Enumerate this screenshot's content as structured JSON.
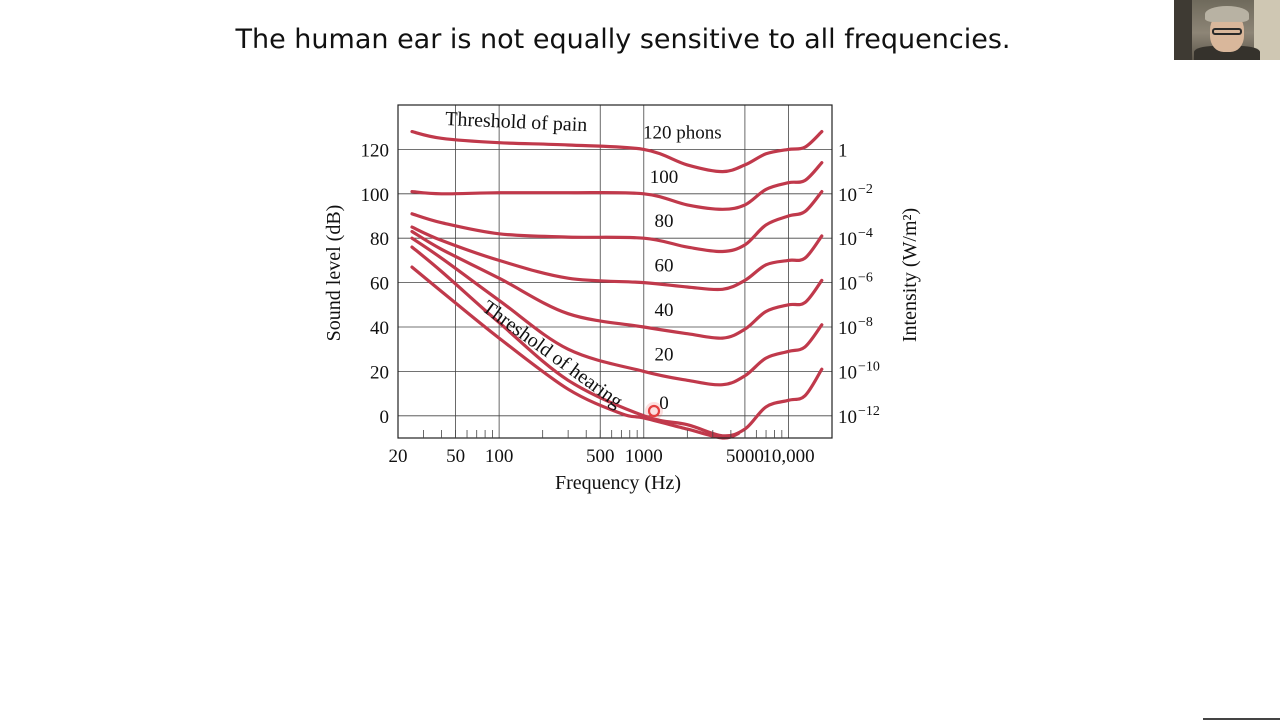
{
  "slide": {
    "title": "The human ear is not equally sensitive to all frequencies."
  },
  "chart_data": {
    "type": "line",
    "xlabel": "Frequency (Hz)",
    "ylabel": "Sound level (dB)",
    "y2label": "Intensity (W/m²)",
    "xscale": "log",
    "xlim": [
      20,
      20000
    ],
    "ylim": [
      -10,
      140
    ],
    "xticks": [
      {
        "value": 20,
        "label": "20"
      },
      {
        "value": 50,
        "label": "50"
      },
      {
        "value": 100,
        "label": "100"
      },
      {
        "value": 500,
        "label": "500"
      },
      {
        "value": 1000,
        "label": "1000"
      },
      {
        "value": 5000,
        "label": "5000"
      },
      {
        "value": 10000,
        "label": "10,000"
      }
    ],
    "yticks": [
      {
        "value": 0,
        "label": "0"
      },
      {
        "value": 20,
        "label": "20"
      },
      {
        "value": 40,
        "label": "40"
      },
      {
        "value": 60,
        "label": "60"
      },
      {
        "value": 80,
        "label": "80"
      },
      {
        "value": 100,
        "label": "100"
      },
      {
        "value": 120,
        "label": "120"
      }
    ],
    "y2ticks": [
      {
        "value": 120,
        "base": "1",
        "exp": ""
      },
      {
        "value": 100,
        "base": "10",
        "exp": "−2"
      },
      {
        "value": 80,
        "base": "10",
        "exp": "−4"
      },
      {
        "value": 60,
        "base": "10",
        "exp": "−6"
      },
      {
        "value": 40,
        "base": "10",
        "exp": "−8"
      },
      {
        "value": 20,
        "base": "10",
        "exp": "−10"
      },
      {
        "value": 0,
        "base": "10",
        "exp": "−12"
      }
    ],
    "grid": true,
    "line_color": "#c0394b",
    "series": [
      {
        "label": "120 phons",
        "points": [
          [
            25,
            128
          ],
          [
            40,
            125
          ],
          [
            100,
            123
          ],
          [
            300,
            122
          ],
          [
            1000,
            120
          ],
          [
            2000,
            113
          ],
          [
            3500,
            110
          ],
          [
            5000,
            113
          ],
          [
            7000,
            118
          ],
          [
            10000,
            120
          ],
          [
            13000,
            121
          ],
          [
            17000,
            128
          ]
        ]
      },
      {
        "label": "100",
        "points": [
          [
            25,
            101
          ],
          [
            40,
            100
          ],
          [
            100,
            100.5
          ],
          [
            300,
            100.5
          ],
          [
            1000,
            100
          ],
          [
            2000,
            95
          ],
          [
            3500,
            93
          ],
          [
            5000,
            95
          ],
          [
            7000,
            102
          ],
          [
            10000,
            105
          ],
          [
            13000,
            106
          ],
          [
            17000,
            114
          ]
        ]
      },
      {
        "label": "80",
        "points": [
          [
            25,
            91
          ],
          [
            40,
            87
          ],
          [
            100,
            82
          ],
          [
            300,
            80.5
          ],
          [
            1000,
            80
          ],
          [
            2000,
            76
          ],
          [
            3500,
            74
          ],
          [
            5000,
            77
          ],
          [
            7000,
            86
          ],
          [
            10000,
            90
          ],
          [
            13000,
            92
          ],
          [
            17000,
            101
          ]
        ]
      },
      {
        "label": "60",
        "points": [
          [
            25,
            85
          ],
          [
            40,
            79
          ],
          [
            100,
            70
          ],
          [
            300,
            62
          ],
          [
            1000,
            60
          ],
          [
            2000,
            58
          ],
          [
            3500,
            57
          ],
          [
            5000,
            61
          ],
          [
            7000,
            68
          ],
          [
            10000,
            70
          ],
          [
            13000,
            71
          ],
          [
            17000,
            81
          ]
        ]
      },
      {
        "label": "40",
        "points": [
          [
            25,
            83
          ],
          [
            40,
            75
          ],
          [
            100,
            62
          ],
          [
            300,
            46
          ],
          [
            1000,
            40
          ],
          [
            2000,
            37
          ],
          [
            3500,
            35
          ],
          [
            5000,
            39
          ],
          [
            7000,
            47
          ],
          [
            10000,
            50
          ],
          [
            13000,
            51
          ],
          [
            17000,
            61
          ]
        ]
      },
      {
        "label": "20",
        "points": [
          [
            25,
            80
          ],
          [
            40,
            71
          ],
          [
            100,
            52
          ],
          [
            300,
            30
          ],
          [
            1000,
            20
          ],
          [
            2000,
            16
          ],
          [
            3500,
            14
          ],
          [
            5000,
            18
          ],
          [
            7000,
            26
          ],
          [
            10000,
            29
          ],
          [
            13000,
            31
          ],
          [
            17000,
            41
          ]
        ]
      },
      {
        "label": "0",
        "points": [
          [
            25,
            76
          ],
          [
            40,
            65
          ],
          [
            100,
            42
          ],
          [
            300,
            16
          ],
          [
            1000,
            0
          ],
          [
            2000,
            -4
          ],
          [
            3500,
            -9
          ],
          [
            5000,
            -6
          ],
          [
            7000,
            4
          ],
          [
            10000,
            7
          ],
          [
            13000,
            9
          ],
          [
            17000,
            21
          ]
        ]
      },
      {
        "label": "",
        "points": [
          [
            25,
            67
          ],
          [
            40,
            56
          ],
          [
            100,
            35
          ],
          [
            300,
            12
          ],
          [
            700,
            1
          ],
          [
            1000,
            -1
          ],
          [
            2000,
            -6
          ],
          [
            3500,
            -10
          ],
          [
            4500,
            -8
          ]
        ]
      }
    ],
    "annotations": {
      "pain": "Threshold of pain",
      "hearing": "Threshold of hearing"
    }
  }
}
